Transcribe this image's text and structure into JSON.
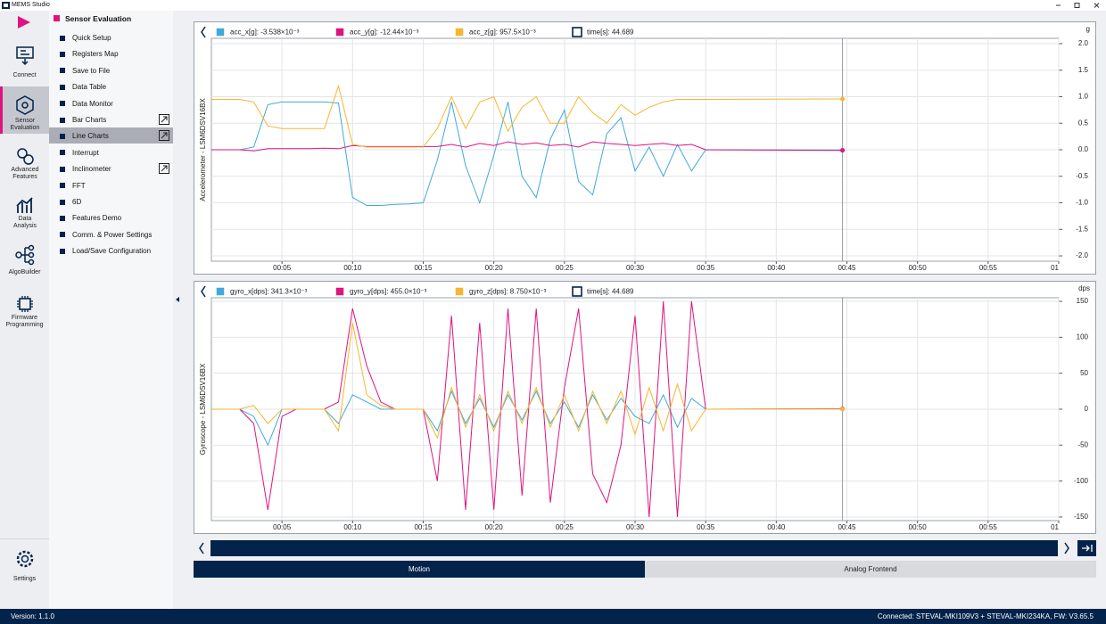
{
  "app": {
    "title": "MEMS Studio",
    "version": "Version: 1.1.0",
    "status": "Connected:  STEVAL-MKI109V3 + STEVAL-MKI234KA, FW: V3.65.5"
  },
  "nav": [
    "Connect",
    "Sensor Evaluation",
    "Advanced Features",
    "Data Analysis",
    "AlgoBuilder",
    "Firmware Programming",
    "Settings"
  ],
  "menu": {
    "title": "Sensor Evaluation",
    "items": [
      "Quick Setup",
      "Registers Map",
      "Save to File",
      "Data Table",
      "Data Monitor",
      "Bar Charts",
      "Line Charts",
      "Interrupt",
      "Inclinometer",
      "FFT",
      "6D",
      "Features Demo",
      "Comm. & Power Settings",
      "Load/Save Configuration"
    ]
  },
  "tabs": [
    "Motion",
    "Analog Frontend"
  ],
  "chart_data": [
    {
      "type": "line",
      "y_label": "Accelerometer - LSM6DSV16BX",
      "unit": "g",
      "xlim": [
        0,
        60
      ],
      "ylim": [
        -2.1,
        2.1
      ],
      "xticks": [
        {
          "value": 5,
          "label": "00:05"
        },
        {
          "value": 10,
          "label": "00:10"
        },
        {
          "value": 15,
          "label": "00:15"
        },
        {
          "value": 20,
          "label": "00:20"
        },
        {
          "value": 25,
          "label": "00:25"
        },
        {
          "value": 30,
          "label": "00:30"
        },
        {
          "value": 35,
          "label": "00:35"
        },
        {
          "value": 40,
          "label": "00:40"
        },
        {
          "value": 45,
          "label": "00:45"
        },
        {
          "value": 50,
          "label": "00:50"
        },
        {
          "value": 55,
          "label": "00:55"
        },
        {
          "value": 60,
          "label": "01"
        }
      ],
      "yticks": [
        {
          "value": 2,
          "label": "2.0"
        },
        1.5,
        {
          "value": 1,
          "label": "1.0"
        },
        0.5,
        {
          "value": 0,
          "label": "0.0"
        },
        -0.5,
        {
          "value": -1,
          "label": "-1.0"
        },
        -1.5,
        {
          "value": -2,
          "label": "-2.0"
        }
      ],
      "grid": true,
      "cursor": {
        "label": "time[s]: 44.689",
        "value": 44.689
      },
      "x": [
        0,
        1,
        2,
        3,
        4,
        5,
        6,
        7,
        8,
        9,
        10,
        11,
        12,
        13,
        14,
        15,
        16,
        17,
        18,
        19,
        20,
        21,
        22,
        23,
        24,
        25,
        26,
        27,
        28,
        29,
        30,
        31,
        32,
        33,
        34,
        35,
        44.689
      ],
      "series": [
        {
          "name": "acc_x[g]: -3.538×10⁻³",
          "color": "#3fa9dc",
          "values": [
            0,
            0,
            0,
            0.05,
            0.85,
            0.9,
            0.9,
            0.9,
            0.9,
            0.88,
            -0.9,
            -1.05,
            -1.05,
            -1.03,
            -1.02,
            -1.0,
            -0.2,
            0.9,
            -0.3,
            -1.0,
            -0.1,
            0.9,
            -0.5,
            -0.9,
            0.2,
            0.75,
            -0.6,
            -0.85,
            0.3,
            0.6,
            -0.4,
            0.05,
            -0.5,
            0.1,
            -0.4,
            0,
            -0.003538
          ]
        },
        {
          "name": "acc_y[g]: -12.44×10⁻³",
          "color": "#e0137f",
          "values": [
            0,
            0,
            0,
            -0.02,
            0.02,
            0.02,
            0.02,
            0.02,
            0.03,
            0.02,
            0.08,
            0.06,
            0.06,
            0.06,
            0.06,
            0.06,
            0.06,
            0.1,
            0.05,
            0.12,
            0.08,
            0.15,
            0.1,
            0.13,
            0.08,
            0.1,
            0.05,
            0.15,
            0.12,
            0.1,
            0.08,
            0.1,
            0.12,
            0.08,
            0.1,
            0,
            -0.01244
          ]
        },
        {
          "name": "acc_z[g]: 957.5×10⁻³",
          "color": "#f7b62e",
          "values": [
            0.95,
            0.95,
            0.95,
            0.9,
            0.45,
            0.4,
            0.4,
            0.4,
            0.4,
            1.2,
            0.1,
            0.05,
            0.05,
            0.05,
            0.05,
            0.05,
            0.4,
            1.0,
            0.4,
            0.9,
            1.0,
            0.35,
            0.8,
            1.0,
            0.5,
            0.5,
            1.0,
            0.7,
            0.5,
            0.85,
            0.65,
            0.8,
            0.9,
            0.95,
            0.95,
            0.95,
            0.9575
          ]
        }
      ]
    },
    {
      "type": "line",
      "y_label": "Gyroscope - LSM6DSV16BX",
      "unit": "dps",
      "xlim": [
        0,
        60
      ],
      "ylim": [
        -155,
        155
      ],
      "xticks": [
        {
          "value": 5,
          "label": "00:05"
        },
        {
          "value": 10,
          "label": "00:10"
        },
        {
          "value": 15,
          "label": "00:15"
        },
        {
          "value": 20,
          "label": "00:20"
        },
        {
          "value": 25,
          "label": "00:25"
        },
        {
          "value": 30,
          "label": "00:30"
        },
        {
          "value": 35,
          "label": "00:35"
        },
        {
          "value": 40,
          "label": "00:40"
        },
        {
          "value": 45,
          "label": "00:45"
        },
        {
          "value": 50,
          "label": "00:50"
        },
        {
          "value": 55,
          "label": "00:55"
        },
        {
          "value": 60,
          "label": "01"
        }
      ],
      "yticks": [
        150,
        100,
        50,
        0,
        -50,
        -100,
        -150
      ],
      "grid": true,
      "cursor": {
        "label": "time[s]: 44.689",
        "value": 44.689
      },
      "x": [
        0,
        1,
        2,
        3,
        4,
        5,
        6,
        7,
        8,
        9,
        10,
        11,
        12,
        13,
        14,
        15,
        16,
        17,
        18,
        19,
        20,
        21,
        22,
        23,
        24,
        25,
        26,
        27,
        28,
        29,
        30,
        31,
        32,
        33,
        34,
        35,
        44.689
      ],
      "series": [
        {
          "name": "gyro_x[dps]: 341.3×10⁻³",
          "color": "#3fa9dc",
          "values": [
            0,
            0,
            0,
            -10,
            -50,
            0,
            0,
            0,
            0,
            -20,
            20,
            10,
            0,
            0,
            0,
            0,
            -30,
            25,
            -20,
            15,
            -25,
            20,
            -15,
            25,
            -20,
            10,
            -25,
            20,
            -15,
            15,
            -10,
            -20,
            20,
            -25,
            15,
            0,
            0.3413
          ]
        },
        {
          "name": "gyro_y[dps]: 455.0×10⁻³",
          "color": "#e0137f",
          "values": [
            0,
            0,
            0,
            -20,
            -140,
            -10,
            0,
            0,
            0,
            10,
            140,
            60,
            10,
            0,
            0,
            0,
            -100,
            130,
            -140,
            120,
            -140,
            140,
            -120,
            140,
            -130,
            30,
            140,
            -90,
            -130,
            -50,
            130,
            -150,
            150,
            -150,
            150,
            0,
            0.455
          ]
        },
        {
          "name": "gyro_z[dps]: 8.750×10⁻³",
          "color": "#f7b62e",
          "values": [
            0,
            0,
            0,
            5,
            -20,
            0,
            0,
            0,
            0,
            -30,
            120,
            20,
            5,
            0,
            0,
            0,
            -40,
            30,
            -25,
            20,
            -30,
            25,
            -20,
            30,
            -25,
            20,
            -30,
            25,
            -20,
            25,
            -35,
            30,
            -30,
            35,
            -30,
            0,
            0.00875
          ]
        }
      ]
    }
  ]
}
